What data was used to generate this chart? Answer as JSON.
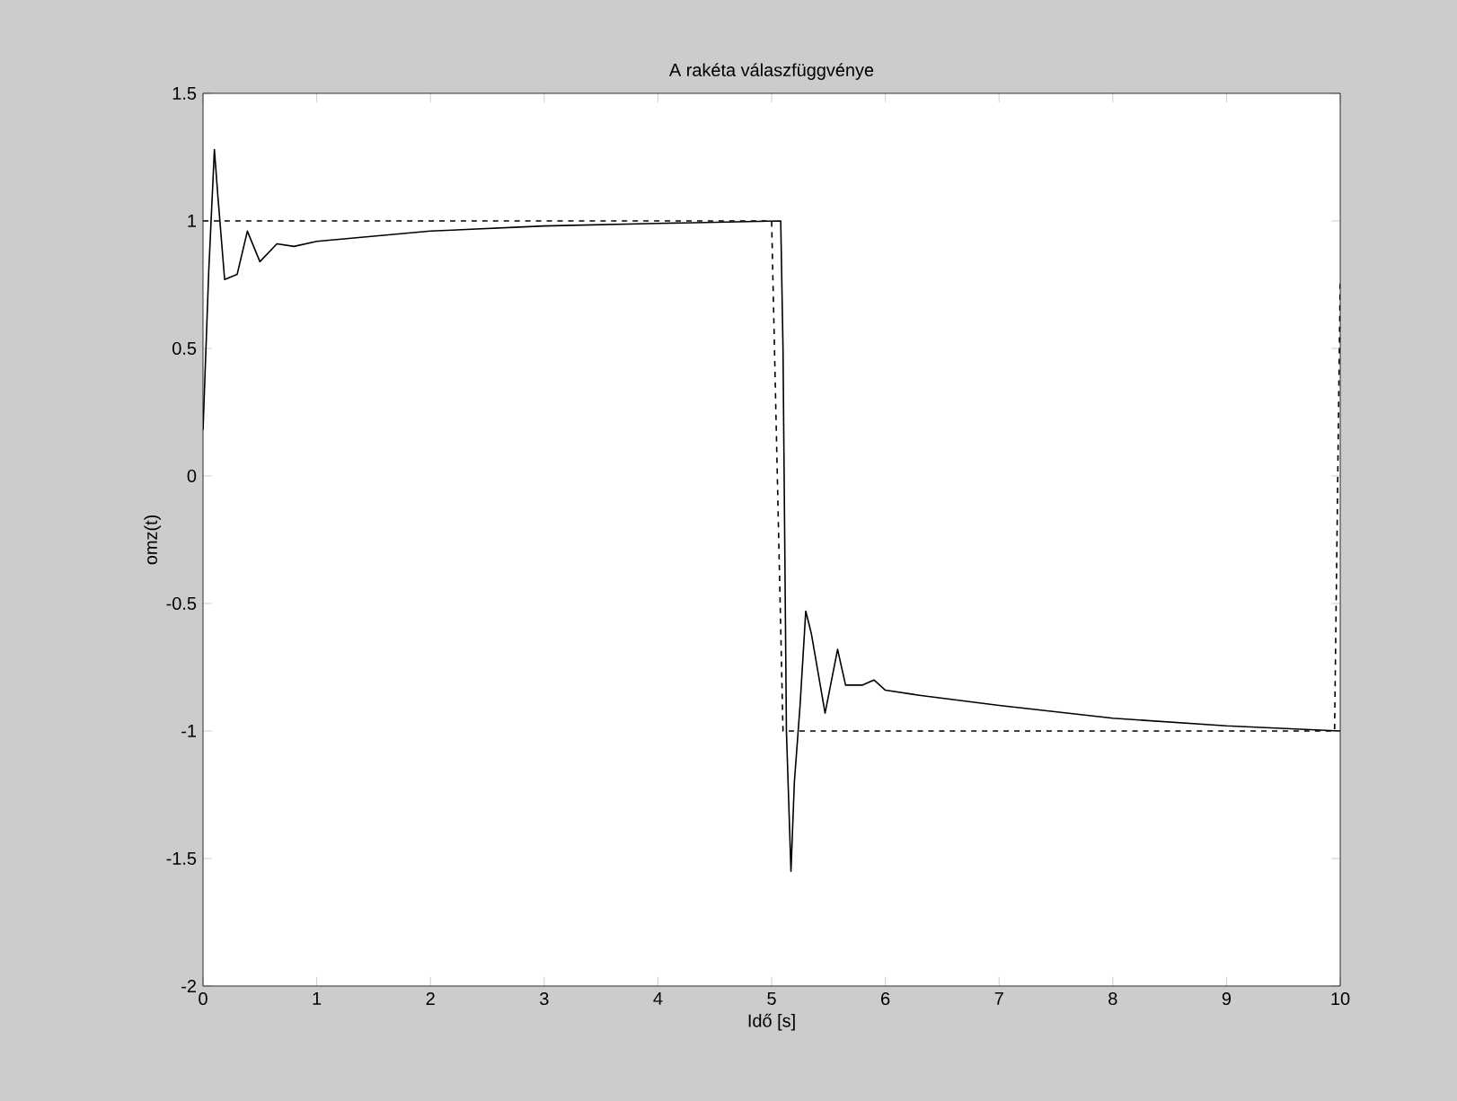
{
  "chart_data": {
    "type": "line",
    "title": "A rakéta válaszfüggvénye",
    "xlabel": "Idő [s]",
    "ylabel": "omz(t)",
    "xlim": [
      0,
      10
    ],
    "ylim": [
      -2,
      1.5
    ],
    "xticks": [
      0,
      1,
      2,
      3,
      4,
      5,
      6,
      7,
      8,
      9,
      10
    ],
    "yticks": [
      -2,
      -1.5,
      -1,
      -0.5,
      0,
      0.5,
      1,
      1.5
    ],
    "marker": "none",
    "series": [
      {
        "color": "#000000",
        "line_style": "solid",
        "x": [
          0,
          0.05,
          0.1,
          0.13,
          0.19,
          0.3,
          0.39,
          0.5,
          0.65,
          0.8,
          1.0,
          1.5,
          2,
          3,
          4,
          5.08,
          5.1,
          5.13,
          5.17,
          5.2,
          5.25,
          5.3,
          5.35,
          5.47,
          5.58,
          5.65,
          5.8,
          5.9,
          6.0,
          6.3,
          7,
          8,
          9,
          10
        ],
        "values": [
          0.18,
          0.8,
          1.28,
          1.1,
          0.77,
          0.79,
          0.96,
          0.84,
          0.91,
          0.9,
          0.92,
          0.94,
          0.96,
          0.98,
          0.99,
          1.0,
          0.5,
          -1.0,
          -1.55,
          -1.2,
          -0.9,
          -0.53,
          -0.62,
          -0.93,
          -0.68,
          -0.82,
          -0.82,
          -0.8,
          -0.84,
          -0.86,
          -0.9,
          -0.95,
          -0.98,
          -1.0
        ]
      },
      {
        "color": "#000000",
        "line_style": "dashed",
        "x": [
          0,
          5.0,
          5.1,
          9.95,
          10
        ],
        "values": [
          1,
          1,
          -1,
          -1,
          0.77
        ]
      }
    ]
  }
}
